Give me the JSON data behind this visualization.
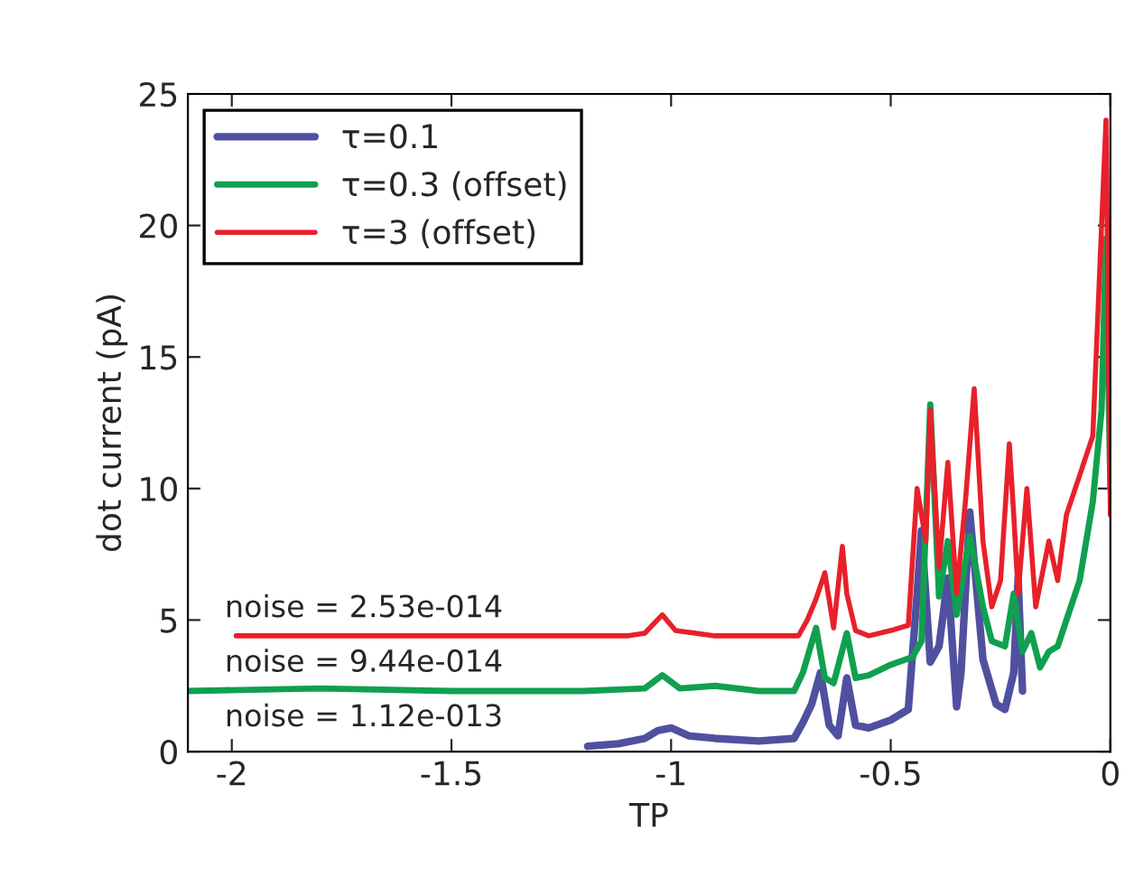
{
  "chart_data": {
    "type": "line",
    "xlabel": "TP",
    "ylabel": "dot current (pA)",
    "xlim": [
      -2.1,
      0
    ],
    "ylim": [
      0,
      25
    ],
    "xticks": [
      -2,
      -1.5,
      -1,
      -0.5,
      0
    ],
    "yticks": [
      0,
      5,
      10,
      15,
      20,
      25
    ],
    "grid": false,
    "legend": "top left",
    "line_style": "solid",
    "marker": "none",
    "annotations": [
      "noise = 2.53e-014",
      "noise = 9.44e-014",
      "noise = 1.12e-013"
    ],
    "series": [
      {
        "name": "τ=0.1",
        "color": "#5050a0",
        "x": [
          -1.19,
          -1.12,
          -1.06,
          -1.03,
          -1.0,
          -0.96,
          -0.9,
          -0.8,
          -0.72,
          -0.7,
          -0.68,
          -0.66,
          -0.64,
          -0.62,
          -0.6,
          -0.58,
          -0.55,
          -0.5,
          -0.46,
          -0.44,
          -0.43,
          -0.41,
          -0.39,
          -0.37,
          -0.35,
          -0.34,
          -0.32,
          -0.29,
          -0.26,
          -0.24,
          -0.22,
          -0.21,
          -0.2
        ],
        "values": [
          0.2,
          0.3,
          0.5,
          0.8,
          0.9,
          0.6,
          0.5,
          0.4,
          0.5,
          1.1,
          1.8,
          3.0,
          1.0,
          0.6,
          2.8,
          1.0,
          0.9,
          1.2,
          1.6,
          6.0,
          8.4,
          3.4,
          4.0,
          6.6,
          1.7,
          3.0,
          9.1,
          3.5,
          1.8,
          1.6,
          3.0,
          6.6,
          2.3
        ]
      },
      {
        "name": "τ=0.3 (offset)",
        "color": "#10a050",
        "x": [
          -2.1,
          -1.8,
          -1.5,
          -1.2,
          -1.06,
          -1.02,
          -0.98,
          -0.9,
          -0.8,
          -0.72,
          -0.7,
          -0.67,
          -0.65,
          -0.63,
          -0.6,
          -0.58,
          -0.55,
          -0.5,
          -0.45,
          -0.43,
          -0.41,
          -0.39,
          -0.37,
          -0.35,
          -0.32,
          -0.29,
          -0.27,
          -0.24,
          -0.22,
          -0.2,
          -0.18,
          -0.16,
          -0.14,
          -0.12,
          -0.1,
          -0.07,
          -0.04,
          -0.02,
          -0.01,
          0
        ],
        "values": [
          2.3,
          2.4,
          2.3,
          2.3,
          2.4,
          2.9,
          2.4,
          2.5,
          2.3,
          2.3,
          3.0,
          4.7,
          2.8,
          2.6,
          4.5,
          2.8,
          2.9,
          3.3,
          3.6,
          4.2,
          13.2,
          5.9,
          8.0,
          5.2,
          8.2,
          5.5,
          4.2,
          4.0,
          6.0,
          3.8,
          4.5,
          3.2,
          3.8,
          4.0,
          5.0,
          6.5,
          9.5,
          13.0,
          19.5,
          10.0
        ]
      },
      {
        "name": "τ=3 (offset)",
        "color": "#e8202a",
        "x": [
          -1.99,
          -1.7,
          -1.4,
          -1.1,
          -1.06,
          -1.02,
          -0.99,
          -0.9,
          -0.8,
          -0.71,
          -0.69,
          -0.67,
          -0.65,
          -0.63,
          -0.61,
          -0.6,
          -0.58,
          -0.55,
          -0.5,
          -0.46,
          -0.44,
          -0.42,
          -0.41,
          -0.39,
          -0.37,
          -0.35,
          -0.33,
          -0.31,
          -0.29,
          -0.27,
          -0.25,
          -0.23,
          -0.22,
          -0.21,
          -0.19,
          -0.17,
          -0.14,
          -0.12,
          -0.1,
          -0.07,
          -0.04,
          -0.02,
          -0.01,
          0
        ],
        "values": [
          4.4,
          4.4,
          4.4,
          4.4,
          4.5,
          5.2,
          4.6,
          4.4,
          4.4,
          4.4,
          5.0,
          5.8,
          6.8,
          4.7,
          7.8,
          6.0,
          4.6,
          4.4,
          4.6,
          4.8,
          10.0,
          8.0,
          13.0,
          7.0,
          11.0,
          6.0,
          9.5,
          13.8,
          8.0,
          5.5,
          6.5,
          11.7,
          9.0,
          6.0,
          10.0,
          5.5,
          8.0,
          6.5,
          9.0,
          10.5,
          12.0,
          20.0,
          24.0,
          9.0
        ]
      }
    ]
  }
}
